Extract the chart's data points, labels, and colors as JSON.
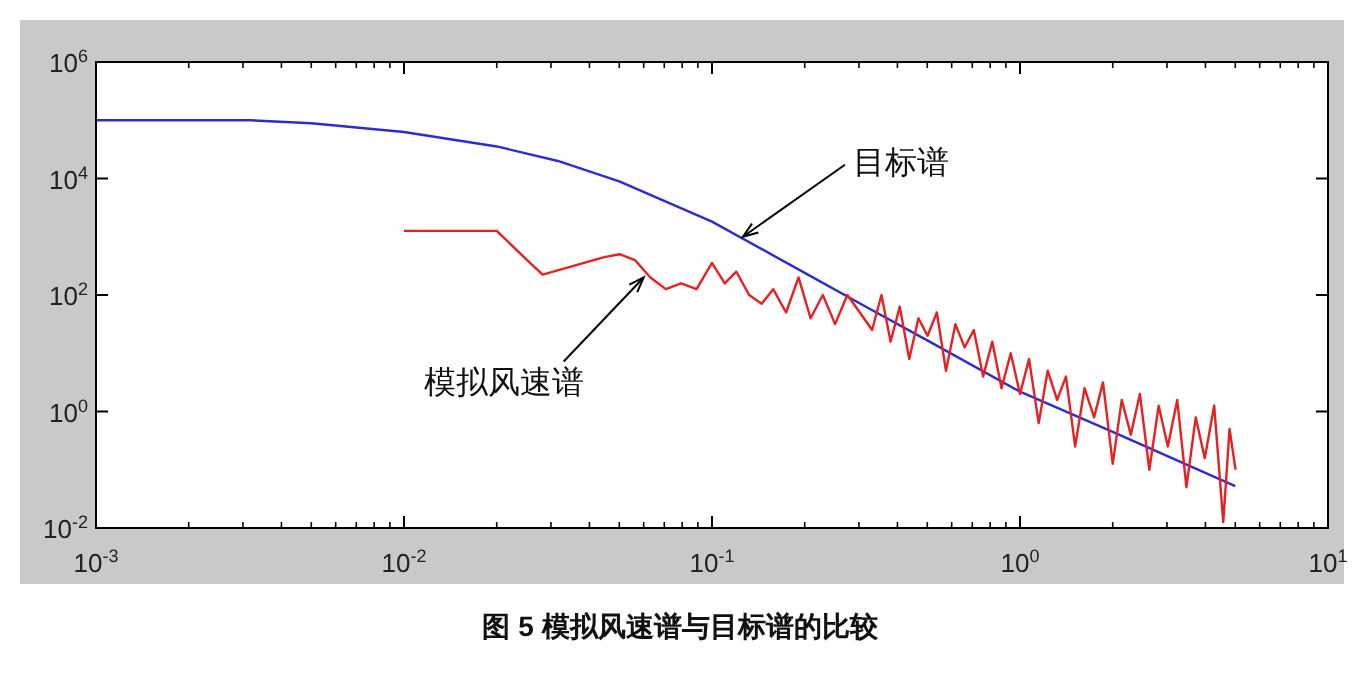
{
  "chart_data": {
    "type": "line",
    "log": "xy",
    "xlim": [
      0.001,
      10
    ],
    "ylim": [
      0.01,
      1000000
    ],
    "xticks": [
      {
        "value": 0.001,
        "label": "10$^{-3}$"
      },
      {
        "value": 0.01,
        "label": "10$^{-2}$"
      },
      {
        "value": 0.1,
        "label": "10$^{-1}$"
      },
      {
        "value": 1,
        "label": "10$^{0}$"
      },
      {
        "value": 10,
        "label": "10$^{1}$"
      }
    ],
    "yticks": [
      {
        "value": 0.01,
        "label": "10$^{-2}$"
      },
      {
        "value": 1,
        "label": "10$^{0}$"
      },
      {
        "value": 100,
        "label": "10$^{2}$"
      },
      {
        "value": 10000,
        "label": "10$^{4}$"
      },
      {
        "value": 1000000,
        "label": "10$^{6}$"
      }
    ],
    "series": [
      {
        "color": "#2c2cd0",
        "x": [
          0.001,
          0.00316,
          0.005,
          0.01,
          0.02,
          0.0316,
          0.05,
          0.1,
          0.2,
          0.316,
          0.5,
          1,
          2,
          5
        ],
        "values": [
          100000,
          100000,
          89000,
          63000,
          35500,
          20000,
          8900,
          1820,
          240,
          63,
          16.6,
          2.19,
          0.447,
          0.0525
        ]
      },
      {
        "color": "#e82020",
        "x": [
          0.01,
          0.0141,
          0.02,
          0.0251,
          0.0282,
          0.0355,
          0.0447,
          0.0501,
          0.0562,
          0.0631,
          0.0708,
          0.0794,
          0.0891,
          0.1,
          0.11,
          0.12,
          0.132,
          0.145,
          0.158,
          0.174,
          0.191,
          0.209,
          0.229,
          0.251,
          0.275,
          0.302,
          0.331,
          0.355,
          0.38,
          0.407,
          0.437,
          0.468,
          0.501,
          0.537,
          0.575,
          0.617,
          0.661,
          0.708,
          0.759,
          0.813,
          0.871,
          0.933,
          1,
          1.07,
          1.15,
          1.23,
          1.32,
          1.41,
          1.51,
          1.62,
          1.74,
          1.86,
          2.0,
          2.14,
          2.29,
          2.45,
          2.63,
          2.82,
          3.02,
          3.24,
          3.47,
          3.72,
          3.98,
          4.27,
          4.57,
          4.79,
          5.01
        ],
        "values": [
          1260,
          1260,
          1260,
          398,
          224,
          316,
          447,
          501,
          398,
          200,
          126,
          158,
          126,
          355,
          158,
          251,
          100,
          70.8,
          126,
          50.1,
          200,
          39.8,
          100,
          31.6,
          100,
          50.1,
          25.1,
          100,
          15.8,
          63.1,
          7.94,
          39.8,
          20,
          50.1,
          5.01,
          31.6,
          12.6,
          25.1,
          3.98,
          15.8,
          2.51,
          10,
          2.0,
          7.94,
          0.631,
          5.01,
          1.58,
          3.98,
          0.251,
          2.51,
          0.794,
          3.16,
          0.126,
          1.58,
          0.398,
          2.0,
          0.1,
          1.26,
          0.251,
          1.58,
          0.0501,
          0.794,
          0.158,
          1.26,
          0.0126,
          0.501,
          0.1
        ]
      }
    ],
    "annotations": [
      {
        "text": "目标谱",
        "x": 0.126,
        "y": 1000
      },
      {
        "text": "模拟风速谱",
        "x": 0.06,
        "y": 200
      },
      "图 5  模拟风速谱与目标谱的比较"
    ]
  }
}
